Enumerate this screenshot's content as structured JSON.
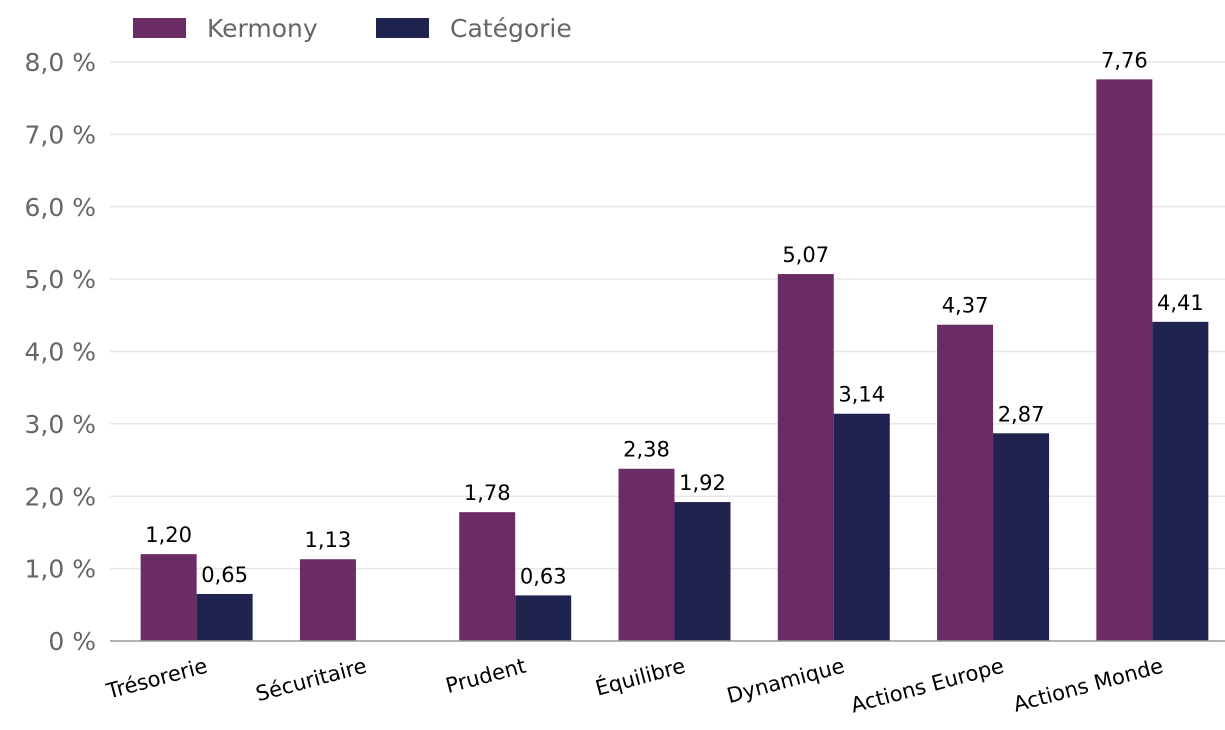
{
  "chart_data": {
    "type": "bar",
    "title": "",
    "xlabel": "",
    "ylabel": "",
    "categories": [
      "Trésorerie",
      "Sécuritaire",
      "Prudent",
      "Équilibre",
      "Dynamique",
      "Actions Europe",
      "Actions Monde"
    ],
    "series": [
      {
        "name": "Kermony",
        "color": "#6b2c66",
        "values": [
          1.2,
          1.13,
          1.78,
          2.38,
          5.07,
          4.37,
          7.76
        ],
        "labels": [
          "1,20",
          "1,13",
          "1,78",
          "2,38",
          "5,07",
          "4,37",
          "7,76"
        ]
      },
      {
        "name": "Catégorie",
        "color": "#21234f",
        "values": [
          0.65,
          null,
          0.63,
          1.92,
          3.14,
          2.87,
          4.41
        ],
        "labels": [
          "0,65",
          null,
          "0,63",
          "1,92",
          "3,14",
          "2,87",
          "4,41"
        ]
      }
    ],
    "ylim": [
      0,
      8
    ],
    "yticks": [
      0,
      1,
      2,
      3,
      4,
      5,
      6,
      7,
      8
    ],
    "ytick_labels": [
      "0 %",
      "1,0 %",
      "2,0 %",
      "3,0 %",
      "4,0 %",
      "5,0 %",
      "6,0 %",
      "7,0 %",
      "8,0 %"
    ],
    "grid": true,
    "legend_position": "top-left"
  }
}
